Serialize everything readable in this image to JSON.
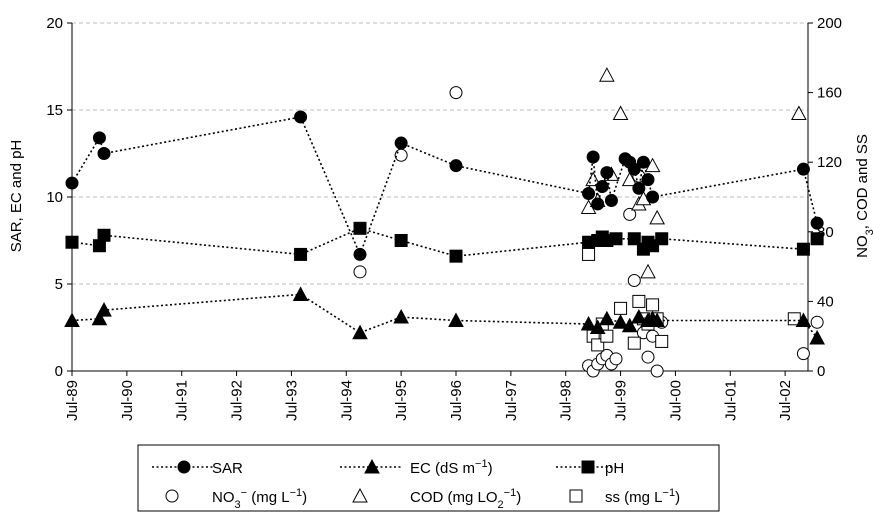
{
  "chart_data": {
    "type": "scatter",
    "x_axis": {
      "tick_labels": [
        "Jul-89",
        "Jul-90",
        "Jul-91",
        "Jul-92",
        "Jul-93",
        "Jul-94",
        "Jul-95",
        "Jul-96",
        "Jul-97",
        "Jul-98",
        "Jul-99",
        "Jul-00",
        "Jul-01",
        "Jul-02"
      ],
      "range": [
        "1989-07",
        "2002-12"
      ]
    },
    "y_left": {
      "label": "SAR, EC and pH",
      "range": [
        0,
        20
      ],
      "ticks": [
        "0",
        "5",
        "10",
        "15",
        "20"
      ]
    },
    "y_right": {
      "label": "NO3, COD and SS",
      "range": [
        0,
        200
      ],
      "ticks": [
        "0",
        "40",
        "80",
        "120",
        "160",
        "200"
      ]
    },
    "grid": "horizontal dashed",
    "legend_position": "bottom",
    "series": [
      {
        "name": "SAR",
        "axis": "left",
        "marker": "filled-circle",
        "line": "dotted",
        "points": [
          [
            "1989-07",
            10.8
          ],
          [
            "1990-01",
            13.4
          ],
          [
            "1990-02",
            12.5
          ],
          [
            "1993-09",
            14.6
          ],
          [
            "1994-10",
            6.7
          ],
          [
            "1995-07",
            13.1
          ],
          [
            "1996-07",
            11.8
          ],
          [
            "1998-12",
            10.2
          ],
          [
            "1999-01",
            12.3
          ],
          [
            "1999-02",
            9.6
          ],
          [
            "1999-03",
            10.6
          ],
          [
            "1999-04",
            11.4
          ],
          [
            "1999-05",
            9.8
          ],
          [
            "1999-08",
            12.2
          ],
          [
            "1999-09",
            12.0
          ],
          [
            "1999-10",
            11.6
          ],
          [
            "1999-11",
            10.5
          ],
          [
            "1999-12",
            12.0
          ],
          [
            "2000-01",
            11.0
          ],
          [
            "2000-02",
            10.0
          ],
          [
            "2002-11",
            11.6
          ],
          [
            "2003-02",
            8.5
          ]
        ]
      },
      {
        "name": "EC (dS m⁻¹)",
        "axis": "left",
        "marker": "filled-triangle",
        "line": "dotted",
        "points": [
          [
            "1989-07",
            2.9
          ],
          [
            "1990-01",
            3.0
          ],
          [
            "1990-02",
            3.5
          ],
          [
            "1993-09",
            4.4
          ],
          [
            "1994-10",
            2.2
          ],
          [
            "1995-07",
            3.1
          ],
          [
            "1996-07",
            2.9
          ],
          [
            "1998-12",
            2.7
          ],
          [
            "1999-02",
            2.5
          ],
          [
            "1999-04",
            3.0
          ],
          [
            "1999-07",
            2.8
          ],
          [
            "1999-09",
            2.6
          ],
          [
            "1999-11",
            3.1
          ],
          [
            "2000-01",
            2.9
          ],
          [
            "2000-02",
            3.0
          ],
          [
            "2000-03",
            2.9
          ],
          [
            "2002-11",
            2.9
          ],
          [
            "2003-02",
            1.9
          ]
        ]
      },
      {
        "name": "pH",
        "axis": "left",
        "marker": "filled-square",
        "line": "dotted",
        "points": [
          [
            "1989-07",
            7.4
          ],
          [
            "1990-01",
            7.2
          ],
          [
            "1990-02",
            7.8
          ],
          [
            "1993-09",
            6.7
          ],
          [
            "1994-10",
            8.2
          ],
          [
            "1995-07",
            7.5
          ],
          [
            "1996-07",
            6.6
          ],
          [
            "1998-12",
            7.4
          ],
          [
            "1999-02",
            7.5
          ],
          [
            "1999-03",
            7.7
          ],
          [
            "1999-04",
            7.5
          ],
          [
            "1999-06",
            7.6
          ],
          [
            "1999-10",
            7.6
          ],
          [
            "1999-12",
            7.0
          ],
          [
            "2000-01",
            7.4
          ],
          [
            "2000-02",
            7.2
          ],
          [
            "2000-04",
            7.6
          ],
          [
            "2002-11",
            7.0
          ],
          [
            "2003-02",
            7.6
          ]
        ]
      },
      {
        "name": "NO₃⁻ (mg L⁻¹)",
        "axis": "right",
        "marker": "open-circle",
        "line": "none",
        "points": [
          [
            "1994-10",
            57
          ],
          [
            "1995-07",
            124
          ],
          [
            "1996-07",
            160
          ],
          [
            "1998-12",
            3
          ],
          [
            "1999-01",
            0
          ],
          [
            "1999-02",
            4
          ],
          [
            "1999-03",
            7
          ],
          [
            "1999-04",
            9
          ],
          [
            "1999-05",
            4
          ],
          [
            "1999-06",
            7
          ],
          [
            "1999-09",
            90
          ],
          [
            "1999-10",
            52
          ],
          [
            "1999-11",
            112
          ],
          [
            "1999-12",
            22
          ],
          [
            "2000-01",
            8
          ],
          [
            "2000-02",
            20
          ],
          [
            "2000-03",
            0
          ],
          [
            "2000-04",
            28
          ],
          [
            "2002-11",
            10
          ],
          [
            "2003-02",
            28
          ]
        ]
      },
      {
        "name": "COD (mg LO₂⁻¹)",
        "axis": "right",
        "marker": "open-triangle",
        "line": "none",
        "points": [
          [
            "1998-12",
            94
          ],
          [
            "1999-01",
            110
          ],
          [
            "1999-02",
            98
          ],
          [
            "1999-04",
            170
          ],
          [
            "1999-05",
            113
          ],
          [
            "1999-07",
            148
          ],
          [
            "1999-09",
            110
          ],
          [
            "1999-11",
            96
          ],
          [
            "1999-12",
            99
          ],
          [
            "2000-01",
            57
          ],
          [
            "2000-02",
            118
          ],
          [
            "2000-03",
            88
          ],
          [
            "2002-10",
            148
          ]
        ]
      },
      {
        "name": "ss (mg L⁻¹)",
        "axis": "right",
        "marker": "open-square",
        "line": "none",
        "points": [
          [
            "1998-12",
            67
          ],
          [
            "1999-01",
            20
          ],
          [
            "1999-02",
            15
          ],
          [
            "1999-03",
            27
          ],
          [
            "1999-04",
            20
          ],
          [
            "1999-07",
            36
          ],
          [
            "1999-10",
            16
          ],
          [
            "1999-11",
            40
          ],
          [
            "1999-12",
            30
          ],
          [
            "2000-01",
            27
          ],
          [
            "2000-02",
            38
          ],
          [
            "2000-03",
            30
          ],
          [
            "2000-04",
            17
          ],
          [
            "2002-09",
            30
          ]
        ]
      }
    ]
  }
}
